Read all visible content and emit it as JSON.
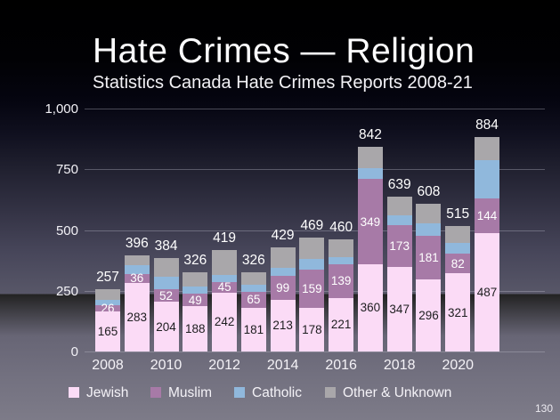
{
  "slide": {
    "title": "Hate Crimes — Religion",
    "subtitle": "Statistics Canada Hate Crimes Reports 2008-21",
    "page_number": "130"
  },
  "colors": {
    "jewish": "#fbdbf6",
    "muslim": "#a77aa7",
    "catholic": "#90b8dc",
    "other": "#a9a7aa",
    "grid": "rgba(200,200,214,0.34)",
    "dark_label": "#1d1d1f",
    "light_label": "#ffffff"
  },
  "chart_data": {
    "type": "bar",
    "subtype": "stacked",
    "title": "Hate Crimes — Religion",
    "subtitle": "Statistics Canada Hate Crimes Reports 2008-21",
    "x": [
      2008,
      2009,
      2010,
      2011,
      2012,
      2013,
      2014,
      2015,
      2016,
      2017,
      2018,
      2019,
      2020,
      2021
    ],
    "x_tick_labels": [
      "2008",
      "2010",
      "2012",
      "2014",
      "2016",
      "2018",
      "2020"
    ],
    "ylim": [
      0,
      1000
    ],
    "y_ticks": [
      0,
      250,
      500,
      750,
      1000
    ],
    "y_tick_labels": [
      "0",
      "250",
      "500",
      "750",
      "1,000"
    ],
    "grid": "horizontal",
    "legend_position": "bottom",
    "series": [
      {
        "name": "Jewish",
        "color": "#fbdbf6",
        "labels_shown": true,
        "label_color": "#1d1d1f",
        "values": [
          165,
          283,
          204,
          188,
          242,
          181,
          213,
          178,
          221,
          360,
          347,
          296,
          321,
          487
        ]
      },
      {
        "name": "Muslim",
        "color": "#a77aa7",
        "labels_shown": true,
        "label_color": "#ffffff",
        "values": [
          26,
          36,
          52,
          49,
          45,
          65,
          99,
          159,
          139,
          349,
          173,
          181,
          82,
          144
        ]
      },
      {
        "name": "Catholic",
        "color": "#90b8dc",
        "labels_shown": false,
        "label_color": "#ffffff",
        "values": [
          22,
          35,
          50,
          30,
          27,
          28,
          34,
          43,
          28,
          45,
          40,
          50,
          43,
          155
        ]
      },
      {
        "name": "Other & Unknown",
        "color": "#a9a7aa",
        "labels_shown": false,
        "label_color": "#ffffff",
        "values": [
          44,
          42,
          78,
          59,
          105,
          52,
          83,
          89,
          72,
          88,
          79,
          81,
          69,
          98
        ]
      }
    ],
    "totals": [
      257,
      396,
      384,
      326,
      419,
      326,
      429,
      469,
      460,
      842,
      639,
      608,
      515,
      884
    ]
  },
  "legend": {
    "items": [
      {
        "label": "Jewish",
        "color": "#fbdbf6"
      },
      {
        "label": "Muslim",
        "color": "#a77aa7"
      },
      {
        "label": "Catholic",
        "color": "#90b8dc"
      },
      {
        "label": "Other & Unknown",
        "color": "#a9a7aa"
      }
    ]
  }
}
